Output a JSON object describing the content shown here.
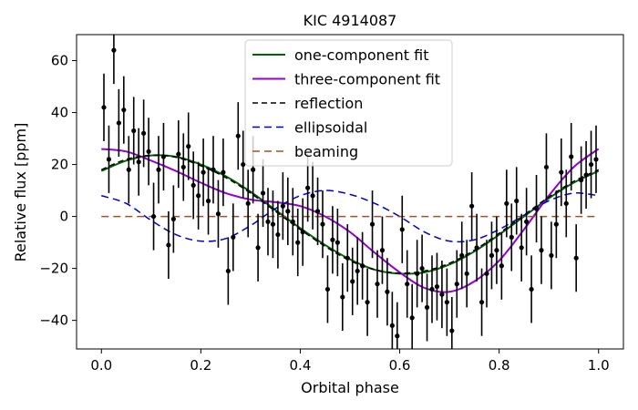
{
  "chart_data": {
    "type": "scatter",
    "title": "KIC 4914087",
    "xlabel": "Orbital phase",
    "ylabel": "Relative flux [ppm]",
    "xlim": [
      -0.05,
      1.05
    ],
    "ylim": [
      -51,
      70
    ],
    "xticks": [
      0.0,
      0.2,
      0.4,
      0.6,
      0.8,
      1.0
    ],
    "xtick_labels": [
      "0.0",
      "0.2",
      "0.4",
      "0.6",
      "0.8",
      "1.0"
    ],
    "yticks": [
      -40,
      -20,
      0,
      20,
      40,
      60
    ],
    "ytick_labels": [
      "−40",
      "−20",
      "0",
      "20",
      "40",
      "60"
    ],
    "grid": false,
    "legend_position": "top-center",
    "series": [
      {
        "name": "one-component fit",
        "kind": "line",
        "color": "#006400",
        "dash": "solid",
        "width": 2,
        "x": [
          0.0,
          0.05,
          0.1,
          0.15,
          0.2,
          0.25,
          0.3,
          0.35,
          0.4,
          0.45,
          0.5,
          0.55,
          0.6,
          0.65,
          0.7,
          0.75,
          0.8,
          0.85,
          0.9,
          0.95,
          1.0
        ],
        "y": [
          17.5,
          21.5,
          23.5,
          23,
          20,
          15.5,
          9.5,
          2.5,
          -4.5,
          -11,
          -16.5,
          -20.5,
          -22,
          -21.5,
          -18.5,
          -13.5,
          -7,
          0,
          7,
          13,
          17.5
        ]
      },
      {
        "name": "three-component fit",
        "kind": "line",
        "color": "#9400d3",
        "dash": "solid",
        "width": 2,
        "x": [
          0.0,
          0.05,
          0.1,
          0.15,
          0.2,
          0.25,
          0.3,
          0.35,
          0.4,
          0.45,
          0.5,
          0.55,
          0.6,
          0.65,
          0.7,
          0.75,
          0.8,
          0.85,
          0.9,
          0.95,
          1.0
        ],
        "y": [
          26,
          25,
          21.5,
          17.5,
          13,
          9,
          6.5,
          5.5,
          4,
          0,
          -6,
          -14,
          -21.5,
          -27.5,
          -29,
          -25,
          -17,
          -5,
          8,
          19,
          26
        ]
      },
      {
        "name": "reflection",
        "kind": "line",
        "color": "#000000",
        "dash": "6,4",
        "width": 1.5,
        "x": [
          0.0,
          0.05,
          0.1,
          0.15,
          0.2,
          0.25,
          0.3,
          0.35,
          0.4,
          0.45,
          0.5,
          0.55,
          0.6,
          0.65,
          0.7,
          0.75,
          0.8,
          0.85,
          0.9,
          0.95,
          1.0
        ],
        "y": [
          18,
          22,
          23.5,
          22.8,
          19.5,
          15,
          9,
          2,
          -5,
          -11.5,
          -17,
          -20.5,
          -21.8,
          -21,
          -18,
          -13,
          -6.5,
          0.5,
          7.5,
          13.5,
          18
        ]
      },
      {
        "name": "ellipsoidal",
        "kind": "line",
        "color": "#0000cd",
        "dash": "8,5",
        "width": 1.5,
        "x": [
          0.0,
          0.05,
          0.1,
          0.15,
          0.2,
          0.25,
          0.3,
          0.35,
          0.4,
          0.45,
          0.5,
          0.55,
          0.6,
          0.65,
          0.7,
          0.75,
          0.8,
          0.85,
          0.9,
          0.95,
          1.0
        ],
        "y": [
          8,
          5,
          -1.5,
          -7,
          -9.5,
          -8.5,
          -3.5,
          3,
          8,
          10,
          8.5,
          5,
          0,
          -6,
          -9.5,
          -9,
          -5,
          0.5,
          6,
          9,
          8
        ]
      },
      {
        "name": "beaming",
        "kind": "line",
        "color": "#a0522d",
        "dash": "8,5",
        "width": 1.5,
        "x": [
          0.0,
          1.0
        ],
        "y": [
          0,
          0
        ]
      }
    ],
    "points": {
      "color": "#000000",
      "x": [
        0.005,
        0.015,
        0.025,
        0.035,
        0.045,
        0.055,
        0.065,
        0.075,
        0.085,
        0.095,
        0.105,
        0.115,
        0.125,
        0.135,
        0.145,
        0.155,
        0.165,
        0.175,
        0.185,
        0.195,
        0.205,
        0.215,
        0.225,
        0.235,
        0.245,
        0.255,
        0.265,
        0.275,
        0.285,
        0.295,
        0.305,
        0.315,
        0.325,
        0.335,
        0.345,
        0.355,
        0.365,
        0.375,
        0.385,
        0.395,
        0.405,
        0.415,
        0.425,
        0.435,
        0.445,
        0.455,
        0.465,
        0.475,
        0.485,
        0.495,
        0.505,
        0.515,
        0.525,
        0.535,
        0.545,
        0.555,
        0.565,
        0.575,
        0.585,
        0.595,
        0.605,
        0.615,
        0.625,
        0.635,
        0.645,
        0.655,
        0.665,
        0.675,
        0.685,
        0.695,
        0.705,
        0.715,
        0.725,
        0.735,
        0.745,
        0.755,
        0.765,
        0.775,
        0.785,
        0.795,
        0.805,
        0.815,
        0.825,
        0.835,
        0.845,
        0.855,
        0.865,
        0.875,
        0.885,
        0.895,
        0.905,
        0.915,
        0.925,
        0.935,
        0.945,
        0.955,
        0.965,
        0.975,
        0.985,
        0.995
      ],
      "y": [
        42,
        22,
        64,
        36,
        41,
        18,
        33,
        21,
        32,
        25,
        0,
        18,
        23,
        -11,
        -1,
        24,
        19,
        27,
        12,
        8,
        17,
        6,
        18,
        1,
        17,
        -21,
        -8,
        31,
        20,
        5,
        18,
        -12,
        9,
        -2,
        -3,
        -7,
        4,
        2,
        -2,
        -10,
        -6,
        11,
        8,
        2,
        -3,
        -28,
        -9,
        -10,
        -31,
        -16,
        -25,
        -21,
        -19,
        -33,
        -3,
        -26,
        -13,
        -29,
        -42,
        -46,
        -5,
        -26,
        -39,
        -22,
        -20,
        -35,
        -28,
        -27,
        -30,
        -33,
        -44,
        -26,
        -15,
        -22,
        4,
        -12,
        -33,
        -22,
        -15,
        -13,
        -19,
        5,
        -8,
        6,
        -12,
        -2,
        -28,
        3,
        -13,
        19,
        -15,
        -3,
        17,
        5,
        23,
        -16,
        14,
        16,
        20,
        22
      ],
      "err": [
        13,
        13,
        13,
        13,
        13,
        13,
        13,
        13,
        13,
        13,
        13,
        13,
        13,
        13,
        13,
        13,
        13,
        13,
        13,
        13,
        13,
        13,
        13,
        13,
        13,
        13,
        13,
        13,
        13,
        13,
        13,
        13,
        13,
        13,
        13,
        13,
        13,
        13,
        13,
        13,
        13,
        13,
        13,
        13,
        13,
        13,
        13,
        13,
        13,
        13,
        13,
        13,
        13,
        13,
        13,
        13,
        13,
        13,
        13,
        13,
        13,
        13,
        13,
        13,
        13,
        13,
        13,
        13,
        13,
        13,
        13,
        13,
        13,
        13,
        13,
        13,
        13,
        13,
        13,
        13,
        13,
        13,
        13,
        13,
        13,
        13,
        13,
        13,
        13,
        13,
        13,
        13,
        13,
        13,
        13,
        13,
        13,
        13,
        13,
        13
      ]
    }
  }
}
